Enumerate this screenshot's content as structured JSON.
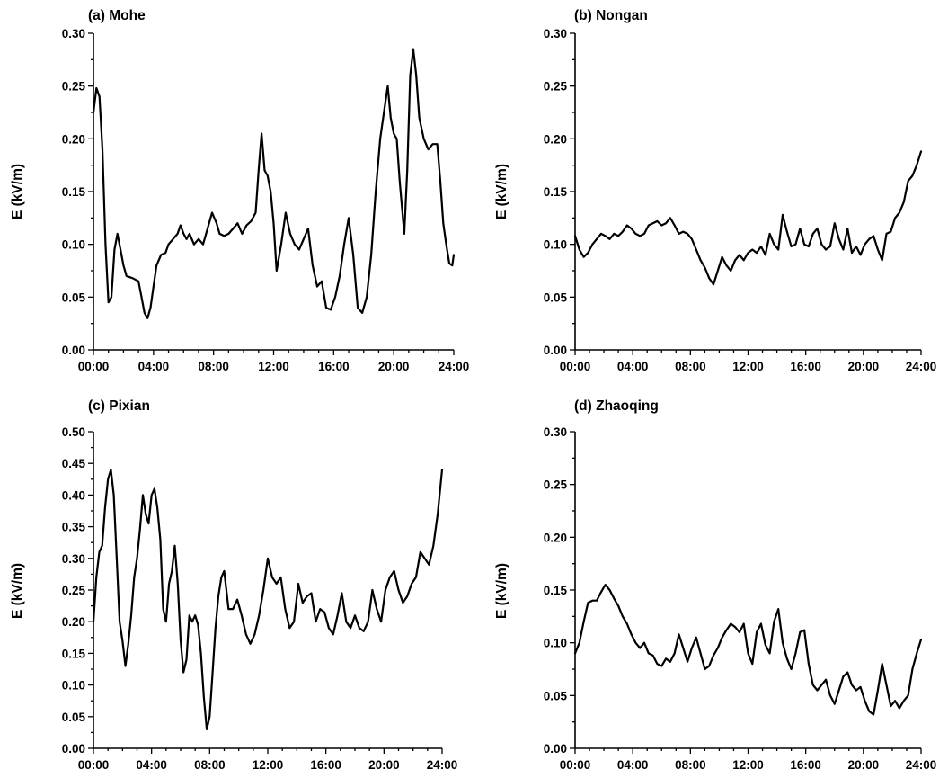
{
  "figure": {
    "background": "#ffffff",
    "line_color": "#000000"
  },
  "chart_data": [
    {
      "type": "line",
      "title": "(a) Mohe",
      "ylabel": "E (kV/m)",
      "xlabel": "",
      "x_ticks": [
        "00:00",
        "04:00",
        "08:00",
        "12:00",
        "16:00",
        "20:00",
        "24:00"
      ],
      "y_ticks": [
        "0.00",
        "0.05",
        "0.10",
        "0.15",
        "0.20",
        "0.25",
        "0.30"
      ],
      "xlim": [
        0,
        24
      ],
      "ylim": [
        0,
        0.3
      ],
      "grid": false,
      "series": [
        {
          "x": [
            0,
            0.2,
            0.4,
            0.6,
            0.8,
            1.0,
            1.2,
            1.4,
            1.6,
            1.8,
            2.0,
            2.2,
            2.6,
            3.0,
            3.2,
            3.4,
            3.6,
            3.8,
            4.0,
            4.2,
            4.5,
            4.8,
            5.0,
            5.3,
            5.6,
            5.8,
            6.0,
            6.2,
            6.4,
            6.7,
            7.0,
            7.3,
            7.6,
            7.9,
            8.2,
            8.4,
            8.7,
            9.0,
            9.3,
            9.6,
            9.9,
            10.2,
            10.5,
            10.8,
            11.0,
            11.2,
            11.4,
            11.6,
            11.8,
            12.0,
            12.2,
            12.5,
            12.8,
            13.1,
            13.4,
            13.7,
            14.0,
            14.3,
            14.6,
            14.9,
            15.2,
            15.5,
            15.8,
            16.1,
            16.4,
            16.7,
            17.0,
            17.3,
            17.6,
            17.9,
            18.2,
            18.5,
            18.8,
            19.1,
            19.4,
            19.6,
            19.8,
            20.0,
            20.2,
            20.4,
            20.7,
            20.9,
            21.1,
            21.3,
            21.5,
            21.7,
            22.0,
            22.3,
            22.6,
            22.9,
            23.1,
            23.3,
            23.5,
            23.7,
            23.9,
            24.0
          ],
          "y": [
            0.225,
            0.248,
            0.24,
            0.19,
            0.1,
            0.045,
            0.05,
            0.095,
            0.11,
            0.095,
            0.08,
            0.07,
            0.068,
            0.065,
            0.05,
            0.035,
            0.03,
            0.04,
            0.06,
            0.08,
            0.09,
            0.092,
            0.1,
            0.105,
            0.11,
            0.118,
            0.11,
            0.105,
            0.11,
            0.1,
            0.105,
            0.1,
            0.115,
            0.13,
            0.12,
            0.11,
            0.108,
            0.11,
            0.115,
            0.12,
            0.11,
            0.118,
            0.122,
            0.13,
            0.17,
            0.205,
            0.17,
            0.165,
            0.15,
            0.12,
            0.075,
            0.1,
            0.13,
            0.11,
            0.1,
            0.095,
            0.105,
            0.115,
            0.08,
            0.06,
            0.065,
            0.04,
            0.038,
            0.05,
            0.07,
            0.1,
            0.125,
            0.09,
            0.04,
            0.035,
            0.05,
            0.09,
            0.15,
            0.2,
            0.23,
            0.25,
            0.22,
            0.205,
            0.2,
            0.16,
            0.11,
            0.17,
            0.26,
            0.285,
            0.26,
            0.22,
            0.2,
            0.19,
            0.195,
            0.195,
            0.16,
            0.12,
            0.1,
            0.082,
            0.08,
            0.09
          ]
        }
      ]
    },
    {
      "type": "line",
      "title": "(b) Nongan",
      "ylabel": "E (kV/m)",
      "xlabel": "",
      "x_ticks": [
        "00:00",
        "04:00",
        "08:00",
        "12:00",
        "16:00",
        "20:00",
        "24:00"
      ],
      "y_ticks": [
        "0.00",
        "0.05",
        "0.10",
        "0.15",
        "0.20",
        "0.25",
        "0.30"
      ],
      "xlim": [
        0,
        24
      ],
      "ylim": [
        0,
        0.3
      ],
      "grid": false,
      "series": [
        {
          "x": [
            0,
            0.3,
            0.6,
            0.9,
            1.2,
            1.5,
            1.8,
            2.1,
            2.4,
            2.7,
            3.0,
            3.3,
            3.6,
            3.9,
            4.2,
            4.5,
            4.8,
            5.1,
            5.4,
            5.7,
            6.0,
            6.3,
            6.6,
            6.9,
            7.2,
            7.5,
            7.8,
            8.1,
            8.4,
            8.7,
            9.0,
            9.3,
            9.6,
            9.9,
            10.2,
            10.5,
            10.8,
            11.1,
            11.4,
            11.7,
            12.0,
            12.3,
            12.6,
            12.9,
            13.2,
            13.5,
            13.8,
            14.1,
            14.4,
            14.7,
            15.0,
            15.3,
            15.6,
            15.9,
            16.2,
            16.5,
            16.8,
            17.1,
            17.4,
            17.7,
            18.0,
            18.3,
            18.6,
            18.9,
            19.2,
            19.5,
            19.8,
            20.1,
            20.4,
            20.7,
            21.0,
            21.3,
            21.6,
            21.9,
            22.2,
            22.5,
            22.8,
            23.1,
            23.4,
            23.7,
            24.0
          ],
          "y": [
            0.108,
            0.095,
            0.088,
            0.092,
            0.1,
            0.105,
            0.11,
            0.108,
            0.105,
            0.11,
            0.108,
            0.112,
            0.118,
            0.115,
            0.11,
            0.108,
            0.11,
            0.118,
            0.12,
            0.122,
            0.118,
            0.12,
            0.125,
            0.118,
            0.11,
            0.112,
            0.11,
            0.105,
            0.095,
            0.085,
            0.078,
            0.068,
            0.062,
            0.075,
            0.088,
            0.08,
            0.075,
            0.085,
            0.09,
            0.085,
            0.092,
            0.095,
            0.092,
            0.098,
            0.09,
            0.11,
            0.1,
            0.095,
            0.128,
            0.112,
            0.098,
            0.1,
            0.115,
            0.1,
            0.098,
            0.11,
            0.115,
            0.1,
            0.095,
            0.098,
            0.12,
            0.105,
            0.095,
            0.115,
            0.092,
            0.098,
            0.09,
            0.1,
            0.105,
            0.108,
            0.095,
            0.085,
            0.11,
            0.112,
            0.125,
            0.13,
            0.14,
            0.16,
            0.165,
            0.175,
            0.188
          ]
        }
      ]
    },
    {
      "type": "line",
      "title": "(c) Pixian",
      "ylabel": "E (kV/m)",
      "xlabel": "",
      "x_ticks": [
        "00:00",
        "04:00",
        "08:00",
        "12:00",
        "16:00",
        "20:00",
        "24:00"
      ],
      "y_ticks": [
        "0.00",
        "0.05",
        "0.10",
        "0.15",
        "0.20",
        "0.25",
        "0.30",
        "0.35",
        "0.40",
        "0.45",
        "0.50"
      ],
      "xlim": [
        0,
        24
      ],
      "ylim": [
        0,
        0.5
      ],
      "grid": false,
      "series": [
        {
          "x": [
            0,
            0.2,
            0.4,
            0.6,
            0.8,
            1.0,
            1.2,
            1.4,
            1.6,
            1.8,
            2.0,
            2.2,
            2.4,
            2.6,
            2.8,
            3.0,
            3.2,
            3.4,
            3.6,
            3.8,
            4.0,
            4.2,
            4.4,
            4.6,
            4.8,
            5.0,
            5.2,
            5.4,
            5.6,
            5.8,
            6.0,
            6.2,
            6.4,
            6.6,
            6.8,
            7.0,
            7.2,
            7.4,
            7.6,
            7.8,
            8.0,
            8.2,
            8.4,
            8.6,
            8.8,
            9.0,
            9.3,
            9.6,
            9.9,
            10.2,
            10.5,
            10.8,
            11.1,
            11.4,
            11.7,
            12.0,
            12.3,
            12.6,
            12.9,
            13.2,
            13.5,
            13.8,
            14.1,
            14.4,
            14.7,
            15.0,
            15.3,
            15.6,
            15.9,
            16.2,
            16.5,
            16.8,
            17.1,
            17.4,
            17.7,
            18.0,
            18.3,
            18.6,
            18.9,
            19.2,
            19.5,
            19.8,
            20.1,
            20.4,
            20.7,
            21.0,
            21.3,
            21.6,
            21.9,
            22.2,
            22.5,
            22.8,
            23.1,
            23.4,
            23.7,
            24.0
          ],
          "y": [
            0.2,
            0.27,
            0.31,
            0.32,
            0.38,
            0.425,
            0.44,
            0.4,
            0.3,
            0.2,
            0.17,
            0.13,
            0.165,
            0.21,
            0.27,
            0.3,
            0.345,
            0.4,
            0.37,
            0.355,
            0.4,
            0.41,
            0.38,
            0.33,
            0.22,
            0.2,
            0.26,
            0.28,
            0.32,
            0.26,
            0.17,
            0.12,
            0.14,
            0.21,
            0.2,
            0.21,
            0.195,
            0.15,
            0.08,
            0.03,
            0.05,
            0.12,
            0.19,
            0.24,
            0.27,
            0.28,
            0.22,
            0.22,
            0.235,
            0.21,
            0.18,
            0.165,
            0.18,
            0.21,
            0.25,
            0.3,
            0.27,
            0.26,
            0.27,
            0.22,
            0.19,
            0.2,
            0.26,
            0.23,
            0.24,
            0.245,
            0.2,
            0.22,
            0.215,
            0.19,
            0.18,
            0.21,
            0.245,
            0.2,
            0.19,
            0.21,
            0.19,
            0.185,
            0.2,
            0.25,
            0.22,
            0.2,
            0.25,
            0.27,
            0.28,
            0.25,
            0.23,
            0.24,
            0.26,
            0.27,
            0.31,
            0.3,
            0.29,
            0.32,
            0.37,
            0.44
          ]
        }
      ]
    },
    {
      "type": "line",
      "title": "(d) Zhaoqing",
      "ylabel": "E (kV/m)",
      "xlabel": "",
      "x_ticks": [
        "00:00",
        "04:00",
        "08:00",
        "12:00",
        "16:00",
        "20:00",
        "24:00"
      ],
      "y_ticks": [
        "0.00",
        "0.05",
        "0.10",
        "0.15",
        "0.20",
        "0.25",
        "0.30"
      ],
      "xlim": [
        0,
        24
      ],
      "ylim": [
        0,
        0.3
      ],
      "grid": false,
      "series": [
        {
          "x": [
            0,
            0.3,
            0.6,
            0.9,
            1.2,
            1.5,
            1.8,
            2.1,
            2.4,
            2.7,
            3.0,
            3.3,
            3.6,
            3.9,
            4.2,
            4.5,
            4.8,
            5.1,
            5.4,
            5.7,
            6.0,
            6.3,
            6.6,
            6.9,
            7.2,
            7.5,
            7.8,
            8.1,
            8.4,
            8.7,
            9.0,
            9.3,
            9.6,
            9.9,
            10.2,
            10.5,
            10.8,
            11.1,
            11.4,
            11.7,
            12.0,
            12.3,
            12.6,
            12.9,
            13.2,
            13.5,
            13.8,
            14.1,
            14.4,
            14.7,
            15.0,
            15.3,
            15.6,
            15.9,
            16.2,
            16.5,
            16.8,
            17.1,
            17.4,
            17.7,
            18.0,
            18.3,
            18.6,
            18.9,
            19.2,
            19.5,
            19.8,
            20.1,
            20.4,
            20.7,
            21.0,
            21.3,
            21.6,
            21.9,
            22.2,
            22.5,
            22.8,
            23.1,
            23.4,
            23.7,
            24.0
          ],
          "y": [
            0.09,
            0.1,
            0.12,
            0.138,
            0.14,
            0.14,
            0.148,
            0.155,
            0.15,
            0.142,
            0.135,
            0.125,
            0.118,
            0.108,
            0.1,
            0.095,
            0.1,
            0.09,
            0.088,
            0.08,
            0.078,
            0.085,
            0.082,
            0.09,
            0.108,
            0.095,
            0.082,
            0.095,
            0.105,
            0.09,
            0.075,
            0.078,
            0.088,
            0.095,
            0.105,
            0.112,
            0.118,
            0.115,
            0.11,
            0.118,
            0.09,
            0.08,
            0.11,
            0.118,
            0.098,
            0.09,
            0.12,
            0.132,
            0.1,
            0.085,
            0.075,
            0.09,
            0.11,
            0.112,
            0.08,
            0.06,
            0.055,
            0.06,
            0.065,
            0.05,
            0.042,
            0.055,
            0.068,
            0.072,
            0.06,
            0.055,
            0.058,
            0.045,
            0.035,
            0.032,
            0.055,
            0.08,
            0.06,
            0.04,
            0.045,
            0.038,
            0.045,
            0.05,
            0.075,
            0.09,
            0.103
          ]
        }
      ]
    }
  ]
}
